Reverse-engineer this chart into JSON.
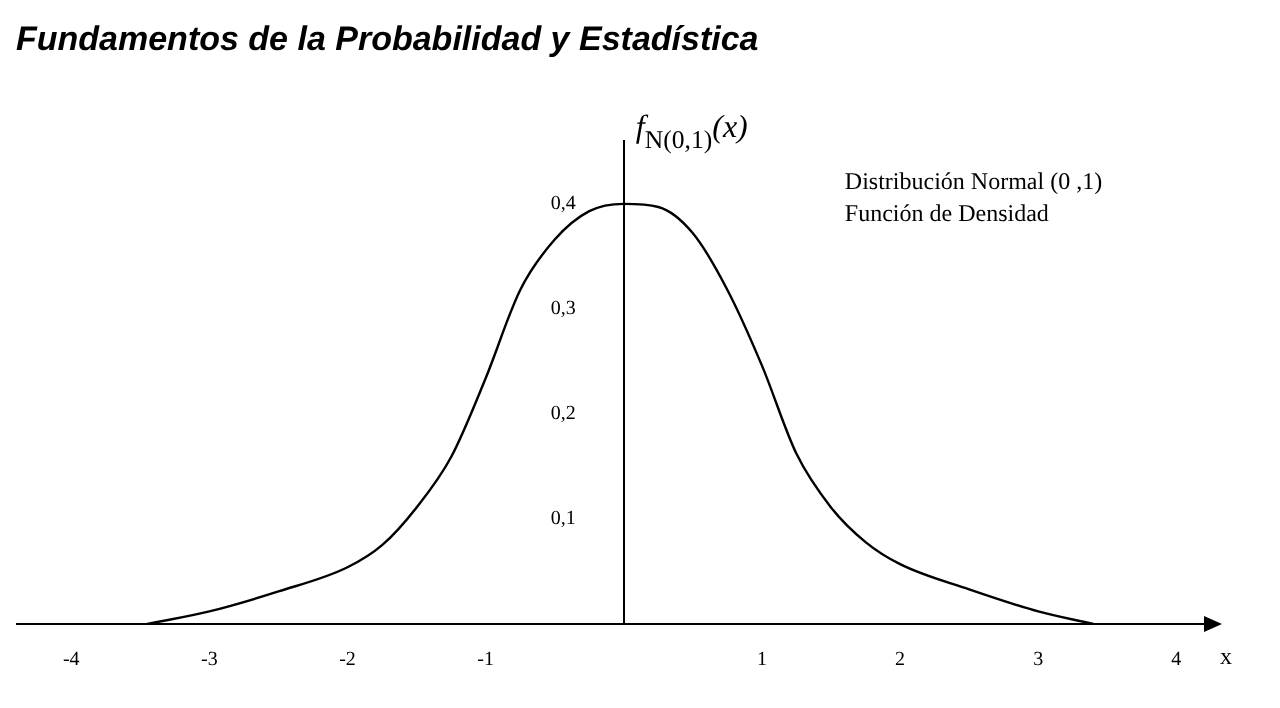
{
  "chart_data": {
    "type": "line",
    "title": "Fundamentos de la Probabilidad y Estadística",
    "xlabel": "x",
    "ylabel": "f$_{N(0,1)}$(x)",
    "annotations": [
      "Distribución Normal (0 ,1)",
      "Función de Densidad"
    ],
    "x": [
      -3.45,
      -3,
      -2.5,
      -2,
      -1.75,
      -1.5,
      -1.25,
      -1,
      -0.75,
      -0.5,
      -0.25,
      0,
      0.25,
      0.5,
      0.75,
      1,
      1.25,
      1.5,
      1.75,
      2,
      2.5,
      3,
      3.4
    ],
    "series": [
      {
        "color": "#000000",
        "values": [
          0,
          0.012,
          0.031,
          0.054,
          0.075,
          0.111,
          0.159,
          0.234,
          0.318,
          0.366,
          0.393,
          0.4,
          0.397,
          0.372,
          0.318,
          0.246,
          0.162,
          0.111,
          0.078,
          0.057,
          0.033,
          0.012,
          0
        ]
      }
    ],
    "marker": "none",
    "line_style": "solid",
    "xlim": [
      -4.4,
      4.2
    ],
    "ylim": [
      0,
      0.46
    ],
    "xticks": [
      -4,
      -3,
      -2,
      -1,
      1,
      2,
      3,
      4
    ],
    "yticks": [
      {
        "value": 0.1,
        "label": "0,1"
      },
      {
        "value": 0.2,
        "label": "0,2"
      },
      {
        "value": 0.3,
        "label": "0,3"
      },
      {
        "value": 0.4,
        "label": "0,4"
      }
    ]
  }
}
